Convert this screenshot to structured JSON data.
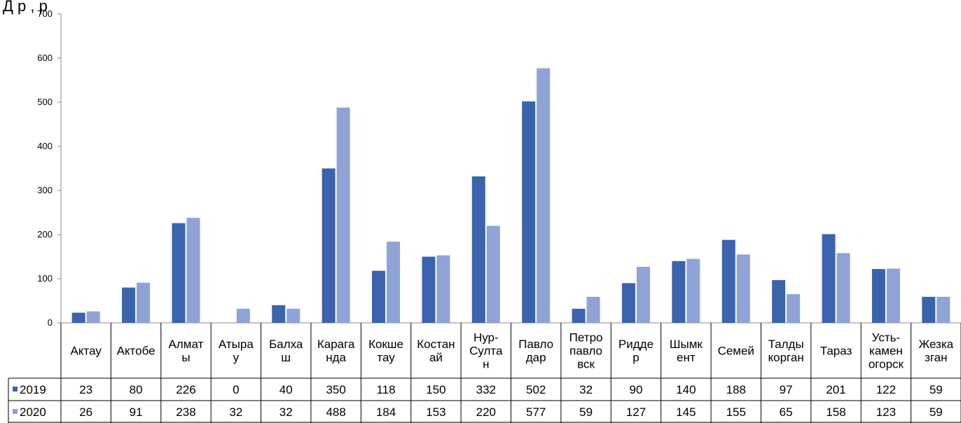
{
  "page_title": "Д                        р                                   ,            р",
  "chart_data": {
    "type": "bar",
    "categories": [
      [
        "Актау"
      ],
      [
        "Актобе"
      ],
      [
        "Алмат",
        "ы"
      ],
      [
        "Атыра",
        "у"
      ],
      [
        "Балха",
        "ш"
      ],
      [
        "Карага",
        "нда"
      ],
      [
        "Кокше",
        "тау"
      ],
      [
        "Костан",
        "ай"
      ],
      [
        "Нур-",
        "Султа",
        "н"
      ],
      [
        "Павло",
        "дар"
      ],
      [
        "Петро",
        "павло",
        "вск"
      ],
      [
        "Ридде",
        "р"
      ],
      [
        "Шымк",
        "ент"
      ],
      [
        "Семей"
      ],
      [
        "Талды",
        "корган"
      ],
      [
        "Тараз"
      ],
      [
        "Усть-",
        "камен",
        "огорск"
      ],
      [
        "Жезка",
        "зган"
      ]
    ],
    "series": [
      {
        "name": "2019",
        "color": "#3B63AE",
        "values": [
          23,
          80,
          226,
          0,
          40,
          350,
          118,
          150,
          332,
          502,
          32,
          90,
          140,
          188,
          97,
          201,
          122,
          59
        ]
      },
      {
        "name": "2020",
        "color": "#8FA3D6",
        "values": [
          26,
          91,
          238,
          32,
          32,
          488,
          184,
          153,
          220,
          577,
          59,
          127,
          145,
          155,
          65,
          158,
          123,
          59
        ]
      }
    ],
    "ylim": [
      0,
      700
    ],
    "yticks": [
      0,
      100,
      200,
      300,
      400,
      500,
      600,
      700
    ],
    "legend": "data-table",
    "grid": false
  }
}
